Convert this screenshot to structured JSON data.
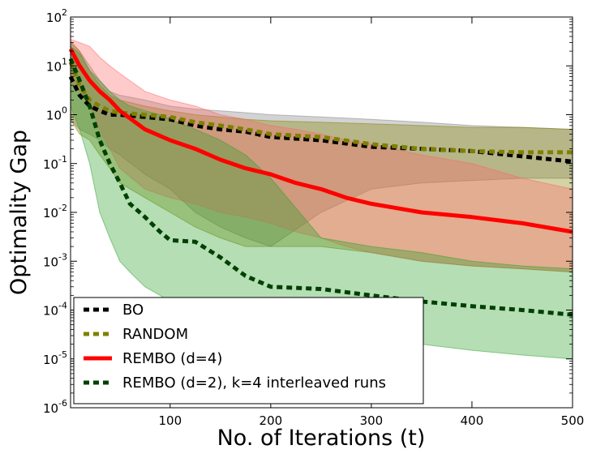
{
  "chart_data": {
    "type": "line",
    "xlabel": "No. of Iterations (t)",
    "ylabel": "Optimality Gap",
    "xlim": [
      1,
      500
    ],
    "ylim": [
      1e-06,
      100
    ],
    "yscale": "log",
    "x_ticks": [
      {
        "value": 100,
        "label": "100"
      },
      {
        "value": 200,
        "label": "200"
      },
      {
        "value": 300,
        "label": "300"
      },
      {
        "value": 400,
        "label": "400"
      },
      {
        "value": 500,
        "label": "500"
      }
    ],
    "y_ticks": [
      {
        "value": 100,
        "base": "10",
        "exp": "2"
      },
      {
        "value": 10,
        "base": "10",
        "exp": "1"
      },
      {
        "value": 1,
        "base": "10",
        "exp": "0"
      },
      {
        "value": 0.1,
        "base": "10",
        "exp": "-1"
      },
      {
        "value": 0.01,
        "base": "10",
        "exp": "-2"
      },
      {
        "value": 0.001,
        "base": "10",
        "exp": "-3"
      },
      {
        "value": 0.0001,
        "base": "10",
        "exp": "-4"
      },
      {
        "value": 1e-05,
        "base": "10",
        "exp": "-5"
      },
      {
        "value": 1e-06,
        "base": "10",
        "exp": "-6"
      }
    ],
    "legend_position": "lower-left",
    "series": [
      {
        "name": "BO",
        "color": "#000000",
        "style": "dashed",
        "band_color": "#808080",
        "x": [
          1,
          10,
          20,
          30,
          40,
          50,
          75,
          100,
          125,
          150,
          175,
          200,
          250,
          300,
          350,
          400,
          450,
          500
        ],
        "y": [
          6,
          2.5,
          1.5,
          1.2,
          1.0,
          1.0,
          0.9,
          0.8,
          0.6,
          0.5,
          0.45,
          0.35,
          0.3,
          0.22,
          0.2,
          0.18,
          0.14,
          0.11
        ],
        "band_upper": [
          30,
          20,
          10,
          5,
          3,
          2.5,
          2.0,
          1.5,
          1.3,
          1.2,
          1.1,
          1.0,
          0.9,
          0.8,
          0.7,
          0.6,
          0.55,
          0.5
        ],
        "band_lower": [
          0.8,
          0.5,
          0.4,
          0.3,
          0.2,
          0.15,
          0.06,
          0.03,
          0.01,
          0.005,
          0.003,
          0.002,
          0.01,
          0.03,
          0.04,
          0.045,
          0.05,
          0.05
        ]
      },
      {
        "name": "RANDOM",
        "color": "#808000",
        "style": "dashed",
        "band_color": "#808000",
        "x": [
          1,
          10,
          20,
          30,
          40,
          50,
          75,
          100,
          125,
          150,
          175,
          200,
          250,
          300,
          350,
          400,
          450,
          500
        ],
        "y": [
          12,
          4,
          2.0,
          1.5,
          1.2,
          1.1,
          1.0,
          0.9,
          0.7,
          0.6,
          0.5,
          0.4,
          0.35,
          0.25,
          0.2,
          0.18,
          0.17,
          0.17
        ],
        "band_upper": [
          32,
          20,
          8,
          4,
          2.5,
          2.0,
          1.5,
          1.2,
          1.0,
          0.9,
          0.8,
          0.75,
          0.7,
          0.65,
          0.6,
          0.55,
          0.55,
          0.5
        ],
        "band_lower": [
          0.8,
          0.4,
          0.3,
          0.15,
          0.08,
          0.04,
          0.02,
          0.01,
          0.005,
          0.003,
          0.002,
          0.002,
          0.002,
          0.0015,
          0.001,
          0.0008,
          0.0007,
          0.0006
        ]
      },
      {
        "name": "REMBO (d=4)",
        "color": "#ff0000",
        "style": "solid",
        "band_color": "#ff6666",
        "x": [
          1,
          10,
          20,
          30,
          40,
          50,
          75,
          100,
          125,
          150,
          175,
          200,
          225,
          250,
          275,
          300,
          350,
          400,
          450,
          500
        ],
        "y": [
          22,
          10,
          5,
          3,
          2,
          1.2,
          0.5,
          0.3,
          0.2,
          0.12,
          0.08,
          0.06,
          0.04,
          0.03,
          0.02,
          0.015,
          0.01,
          0.008,
          0.006,
          0.004
        ],
        "band_upper": [
          35,
          30,
          25,
          15,
          10,
          7,
          3,
          2,
          1.5,
          1.0,
          0.8,
          0.6,
          0.5,
          0.4,
          0.3,
          0.25,
          0.15,
          0.1,
          0.05,
          0.03
        ],
        "band_lower": [
          5,
          3,
          1.5,
          0.5,
          0.2,
          0.08,
          0.03,
          0.02,
          0.015,
          0.01,
          0.008,
          0.006,
          0.004,
          0.003,
          0.002,
          0.0015,
          0.001,
          0.0008,
          0.0007,
          0.0006
        ]
      },
      {
        "name": "REMBO (d=2), k=4 interleaved runs",
        "color": "#004000",
        "style": "dashed",
        "band_color": "#2ca02c",
        "x": [
          1,
          10,
          20,
          30,
          40,
          50,
          60,
          75,
          90,
          100,
          125,
          150,
          175,
          200,
          250,
          300,
          350,
          400,
          450,
          500
        ],
        "y": [
          14,
          5,
          1.5,
          0.3,
          0.1,
          0.04,
          0.015,
          0.008,
          0.004,
          0.0027,
          0.0025,
          0.0012,
          0.0005,
          0.0003,
          0.00027,
          0.0002,
          0.00015,
          0.00012,
          0.0001,
          8e-05
        ],
        "band_upper": [
          25,
          18,
          8,
          5,
          3,
          2,
          1.5,
          1.2,
          1.0,
          0.8,
          0.5,
          0.3,
          0.15,
          0.05,
          0.003,
          0.002,
          0.0015,
          0.001,
          0.0008,
          0.0007
        ],
        "band_lower": [
          1.5,
          0.5,
          0.1,
          0.01,
          0.003,
          0.001,
          0.0006,
          0.0003,
          0.0002,
          0.00015,
          0.0001,
          5e-05,
          3e-05,
          3e-05,
          2e-05,
          2e-05,
          2e-05,
          1.5e-05,
          1.2e-05,
          1e-05
        ]
      }
    ]
  },
  "legend": {
    "items": [
      {
        "name": "BO",
        "color": "#000000",
        "style": "dashed",
        "label": "BO"
      },
      {
        "name": "RANDOM",
        "color": "#808000",
        "style": "dashed",
        "label": "RANDOM"
      },
      {
        "name": "REMBO (d=4)",
        "color": "#ff0000",
        "style": "solid",
        "label": "REMBO (d=4)"
      },
      {
        "name": "REMBO (d=2), k=4 interleaved runs",
        "color": "#004000",
        "style": "dashed",
        "label": "REMBO (d=2), k=4 interleaved runs"
      }
    ]
  }
}
